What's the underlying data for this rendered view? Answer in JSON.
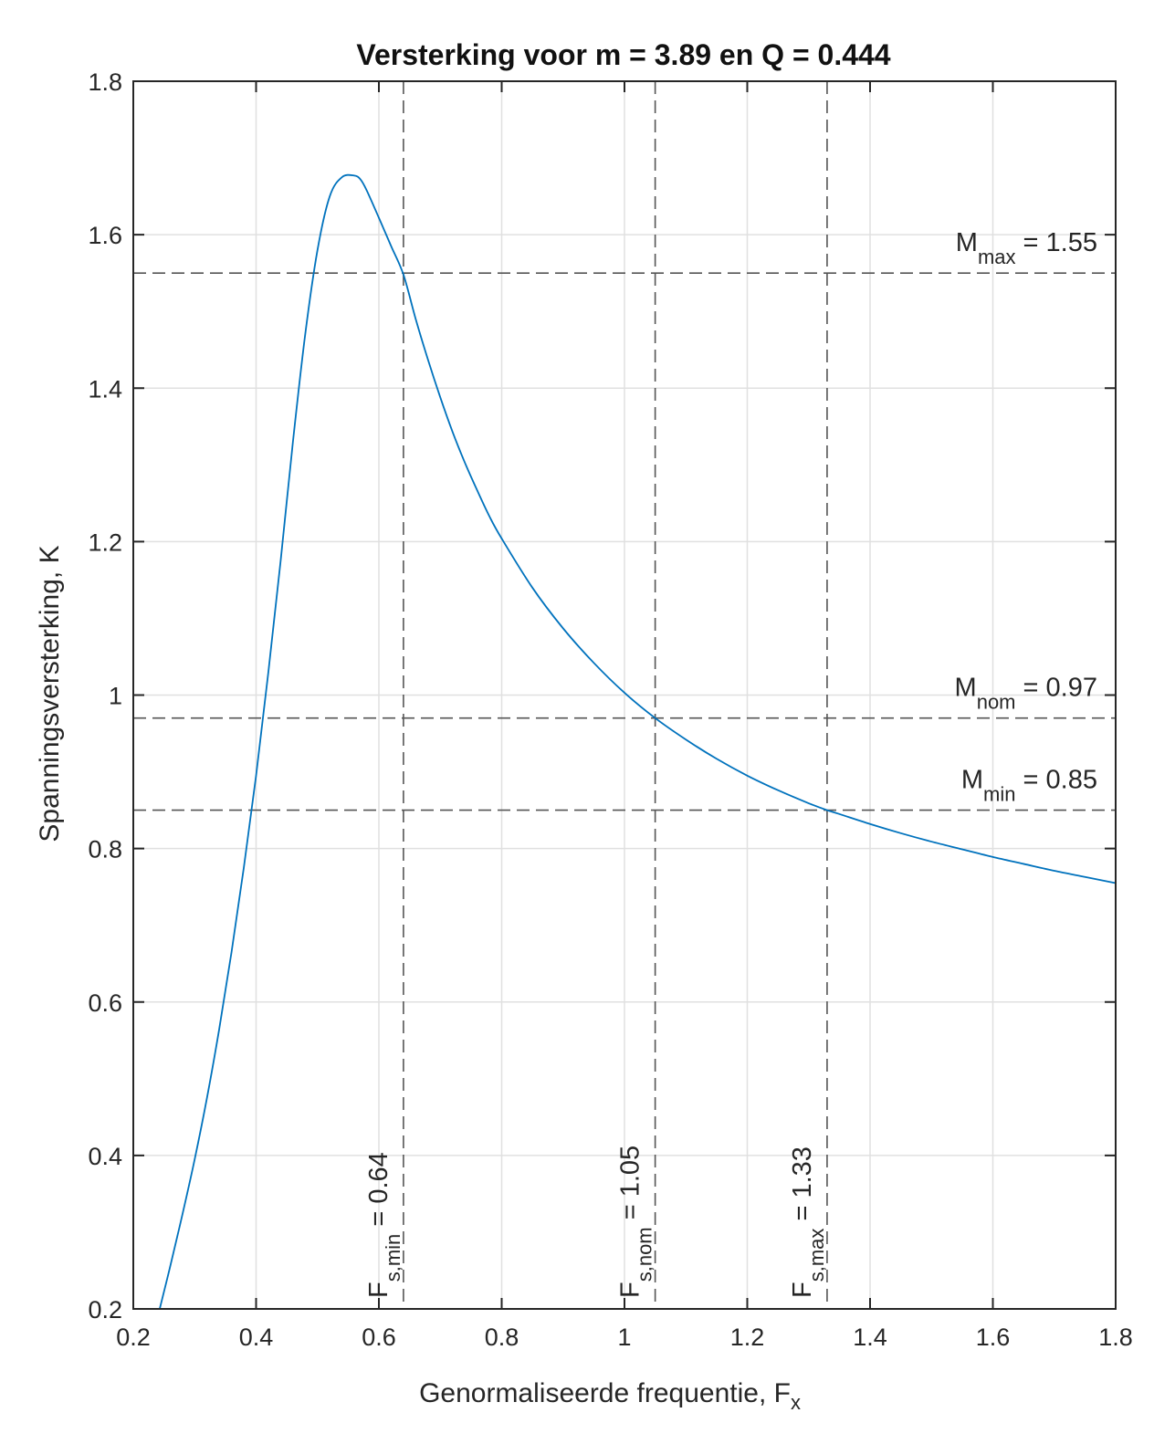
{
  "chart_data": {
    "type": "line",
    "title": "Versterking voor m = 3.89 en Q = 0.444",
    "xlabel": {
      "main": "Genormaliseerde frequentie, F",
      "sub": "x"
    },
    "ylabel": "Spanningsversterking, K",
    "xlim": [
      0.2,
      1.8
    ],
    "ylim": [
      0.2,
      1.8
    ],
    "grid": true,
    "xticks": [
      0.2,
      0.4,
      0.6,
      0.8,
      1.0,
      1.2,
      1.4,
      1.6,
      1.8
    ],
    "xtick_labels": [
      "0.2",
      "0.4",
      "0.6",
      "0.8",
      "1",
      "1.2",
      "1.4",
      "1.6",
      "1.8"
    ],
    "yticks": [
      0.2,
      0.4,
      0.6,
      0.8,
      1.0,
      1.2,
      1.4,
      1.6,
      1.8
    ],
    "ytick_labels": [
      "0.2",
      "0.4",
      "0.6",
      "0.8",
      "1",
      "1.2",
      "1.4",
      "1.6",
      "1.8"
    ],
    "series": [
      {
        "color": "#0072bd",
        "x": [
          0.243,
          0.26,
          0.28,
          0.3,
          0.32,
          0.34,
          0.36,
          0.38,
          0.4,
          0.42,
          0.44,
          0.46,
          0.48,
          0.5,
          0.52,
          0.54,
          0.56,
          0.57,
          0.58,
          0.6,
          0.62,
          0.64,
          0.66,
          0.68,
          0.7,
          0.72,
          0.74,
          0.76,
          0.78,
          0.8,
          0.85,
          0.9,
          0.95,
          1.0,
          1.05,
          1.1,
          1.15,
          1.2,
          1.25,
          1.3,
          1.33,
          1.35,
          1.4,
          1.45,
          1.5,
          1.55,
          1.6,
          1.65,
          1.7,
          1.75,
          1.8
        ],
        "y": [
          0.2,
          0.255,
          0.323,
          0.395,
          0.475,
          0.565,
          0.665,
          0.775,
          0.895,
          1.03,
          1.175,
          1.33,
          1.47,
          1.58,
          1.65,
          1.675,
          1.677,
          1.672,
          1.658,
          1.622,
          1.585,
          1.548,
          1.49,
          1.437,
          1.388,
          1.343,
          1.303,
          1.267,
          1.233,
          1.204,
          1.14,
          1.087,
          1.042,
          1.003,
          0.97,
          0.942,
          0.917,
          0.895,
          0.876,
          0.859,
          0.85,
          0.845,
          0.832,
          0.82,
          0.809,
          0.799,
          0.789,
          0.78,
          0.771,
          0.763,
          0.755
        ]
      }
    ],
    "hlines": [
      {
        "y": 1.55,
        "label_main": "M",
        "label_sub": "max",
        "label_value": " = 1.55"
      },
      {
        "y": 0.97,
        "label_main": "M",
        "label_sub": "nom",
        "label_value": " = 0.97"
      },
      {
        "y": 0.85,
        "label_main": "M",
        "label_sub": "min",
        "label_value": " = 0.85"
      }
    ],
    "vlines": [
      {
        "x": 0.64,
        "label_main": "F",
        "label_sub": "s,min",
        "label_value": " = 0.64"
      },
      {
        "x": 1.05,
        "label_main": "F",
        "label_sub": "s,nom",
        "label_value": " = 1.05"
      },
      {
        "x": 1.33,
        "label_main": "F",
        "label_sub": "s,max",
        "label_value": " = 1.33"
      }
    ]
  }
}
